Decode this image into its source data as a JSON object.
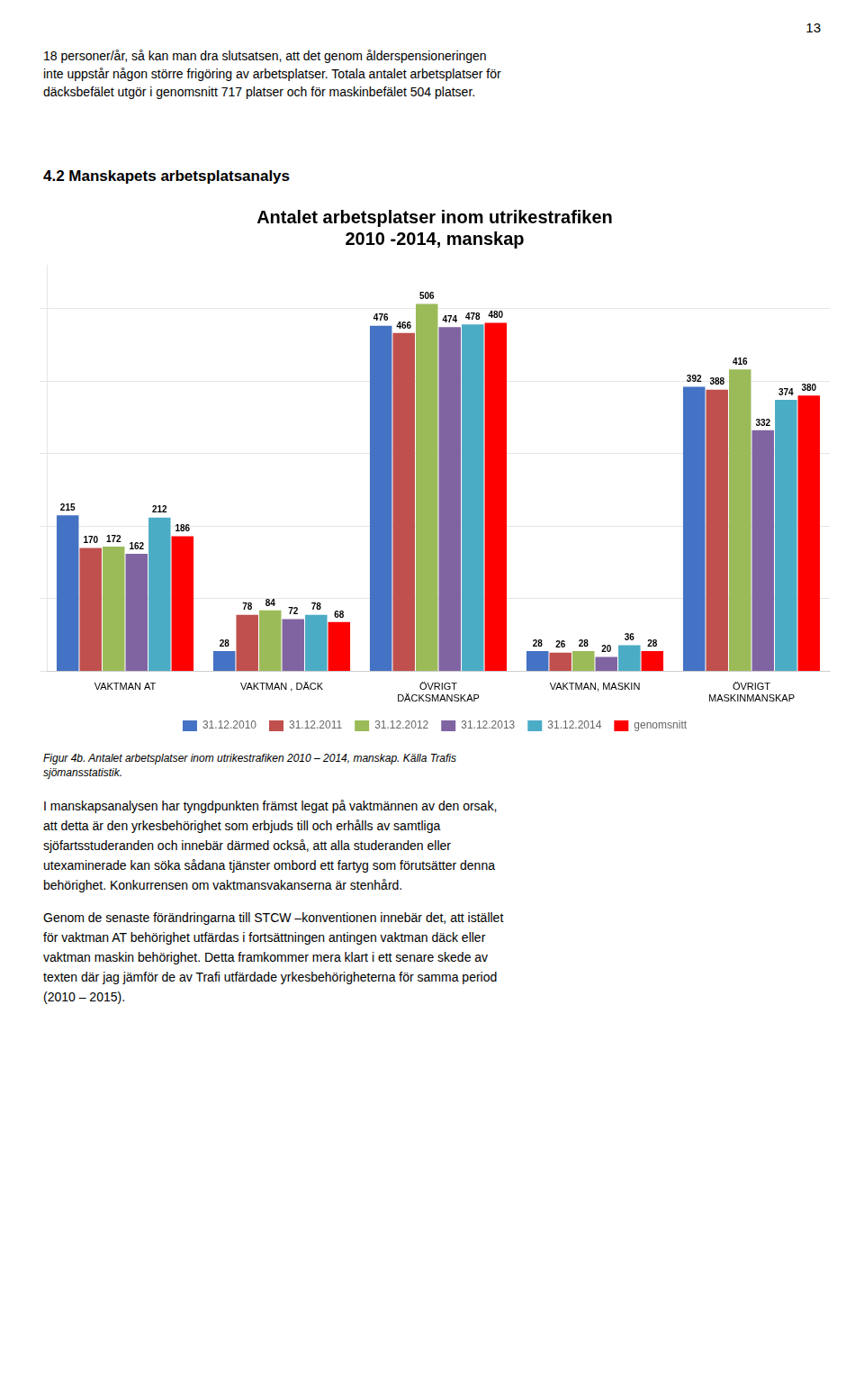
{
  "page_number": "13",
  "top_text_lines": [
    "18 personer/år, så kan man dra slutsatsen, att det genom ålderspensioneringen",
    "inte uppstår någon större frigöring av arbetsplatser. Totala antalet arbetsplatser för",
    "däcksbefälet utgör i genomsnitt 717 platser och för maskinbefälet 504 platser."
  ],
  "heading": "4.2 Manskapets arbetsplatsanalys",
  "chart_data": {
    "type": "bar",
    "title": "Antalet arbetsplatser inom utrikestrafiken\n2010 -2014, manskap",
    "categories": [
      "VAKTMAN AT",
      "VAKTMAN , DÄCK",
      "ÖVRIGT\nDÄCKSMANSKAP",
      "VAKTMAN, MASKIN",
      "ÖVRIGT\nMASKINMANSKAP"
    ],
    "series": [
      {
        "name": "31.12.2010",
        "color": "#4472C4",
        "values": [
          215,
          28,
          476,
          28,
          392
        ]
      },
      {
        "name": "31.12.2011",
        "color": "#C0504D",
        "values": [
          170,
          78,
          466,
          26,
          388
        ]
      },
      {
        "name": "31.12.2012",
        "color": "#9BBB59",
        "values": [
          172,
          84,
          506,
          28,
          416
        ]
      },
      {
        "name": "31.12.2013",
        "color": "#8064A2",
        "values": [
          162,
          72,
          474,
          20,
          332
        ]
      },
      {
        "name": "31.12.2014",
        "color": "#4BACC6",
        "values": [
          212,
          78,
          478,
          36,
          374
        ]
      },
      {
        "name": "genomsnitt",
        "color": "#FF0000",
        "values": [
          186,
          68,
          480,
          28,
          380
        ]
      }
    ],
    "ylim": [
      0,
      560
    ],
    "yticks": [
      0,
      100,
      200,
      300,
      400,
      500
    ],
    "grid": true,
    "legend": "bottom",
    "data_labels": true,
    "tick_labels": "x"
  },
  "caption_lines": [
    "Figur 4b. Antalet arbetsplatser inom utrikestrafiken 2010 – 2014, manskap. Källa Trafis",
    "sjömansstatistik."
  ],
  "body_text_1_lines": [
    "I manskapsanalysen har tyngdpunkten främst legat på vaktmännen av den orsak,",
    "att detta är den yrkesbehörighet som erbjuds till och erhålls av samtliga",
    "sjöfartsstuderanden och innebär därmed också, att alla studeranden eller",
    "utexaminerade kan söka sådana tjänster ombord ett fartyg som förutsätter denna",
    "behörighet. Konkurrensen om vaktmansvakanserna är stenhård."
  ],
  "body_text_2_lines": [
    "Genom de senaste förändringarna till STCW –konventionen innebär det, att istället",
    "för vaktman AT behörighet utfärdas i fortsättningen antingen vaktman däck eller",
    "vaktman maskin behörighet. Detta framkommer mera klart i ett senare skede av",
    "texten där jag jämför de av Trafi utfärdade yrkesbehörigheterna för samma period",
    "(2010 – 2015)."
  ]
}
